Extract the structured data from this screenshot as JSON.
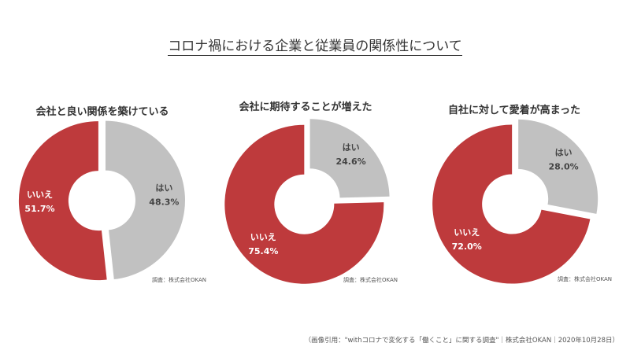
{
  "title": "コロナ禍における企業と従業員の関係性について",
  "colors": {
    "yes": "#c1c1c1",
    "no": "#be3a3c",
    "yes_text": "#444444",
    "no_text": "#ffffff"
  },
  "chart_data": [
    {
      "type": "pie",
      "title": "会社と良い関係を築けている",
      "source": "調査：株式会社OKAN",
      "slices": [
        {
          "label": "はい",
          "value": 48.3,
          "display": "48.3%"
        },
        {
          "label": "いいえ",
          "value": 51.7,
          "display": "51.7%"
        }
      ]
    },
    {
      "type": "pie",
      "title": "会社に期待することが増えた",
      "source": "調査：株式会社OKAN",
      "slices": [
        {
          "label": "はい",
          "value": 24.6,
          "display": "24.6%"
        },
        {
          "label": "いいえ",
          "value": 75.4,
          "display": "75.4%"
        }
      ]
    },
    {
      "type": "pie",
      "title": "自社に対して愛着が高まった",
      "source": "調査：株式会社OKAN",
      "slices": [
        {
          "label": "はい",
          "value": 28.0,
          "display": "28.0%"
        },
        {
          "label": "いいえ",
          "value": 72.0,
          "display": "72.0%"
        }
      ]
    }
  ],
  "citation": "（画像引用：\"withコロナで変化する「働くこと」に関する調査\"｜株式会社OKAN｜2020年10月28日）"
}
